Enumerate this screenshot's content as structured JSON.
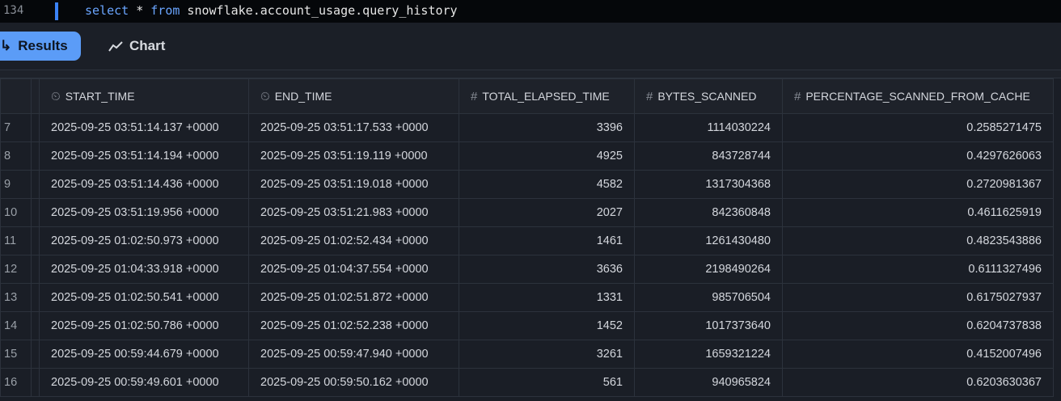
{
  "editor": {
    "line_number": "134",
    "code": {
      "kw1": "select",
      "star": " * ",
      "kw2": "from",
      "rest": " snowflake.account_usage.query_history"
    }
  },
  "toolbar": {
    "results_label": "Results",
    "chart_label": "Chart",
    "results_icon": "arrow-return-icon",
    "chart_icon": "line-chart-icon",
    "accent": "#5b9cf7"
  },
  "table": {
    "columns": [
      {
        "label": "START_TIME",
        "type_icon": "timestamp-ltz-icon"
      },
      {
        "label": "END_TIME",
        "type_icon": "timestamp-ltz-icon"
      },
      {
        "label": "TOTAL_ELAPSED_TIME",
        "type_icon": "hash-icon"
      },
      {
        "label": "BYTES_SCANNED",
        "type_icon": "hash-icon"
      },
      {
        "label": "PERCENTAGE_SCANNED_FROM_CACHE",
        "type_icon": "hash-icon"
      }
    ],
    "rows": [
      [
        "7",
        "2025-09-25 03:51:14.137 +0000",
        "2025-09-25 03:51:17.533 +0000",
        "3396",
        "1114030224",
        "0.2585271475"
      ],
      [
        "8",
        "2025-09-25 03:51:14.194 +0000",
        "2025-09-25 03:51:19.119 +0000",
        "4925",
        "843728744",
        "0.4297626063"
      ],
      [
        "9",
        "2025-09-25 03:51:14.436 +0000",
        "2025-09-25 03:51:19.018 +0000",
        "4582",
        "1317304368",
        "0.2720981367"
      ],
      [
        "10",
        "2025-09-25 03:51:19.956 +0000",
        "2025-09-25 03:51:21.983 +0000",
        "2027",
        "842360848",
        "0.4611625919"
      ],
      [
        "11",
        "2025-09-25 01:02:50.973 +0000",
        "2025-09-25 01:02:52.434 +0000",
        "1461",
        "1261430480",
        "0.4823543886"
      ],
      [
        "12",
        "2025-09-25 01:04:33.918 +0000",
        "2025-09-25 01:04:37.554 +0000",
        "3636",
        "2198490264",
        "0.6111327496"
      ],
      [
        "13",
        "2025-09-25 01:02:50.541 +0000",
        "2025-09-25 01:02:51.872 +0000",
        "1331",
        "985706504",
        "0.6175027937"
      ],
      [
        "14",
        "2025-09-25 01:02:50.786 +0000",
        "2025-09-25 01:02:52.238 +0000",
        "1452",
        "1017373640",
        "0.6204737838"
      ],
      [
        "15",
        "2025-09-25 00:59:44.679 +0000",
        "2025-09-25 00:59:47.940 +0000",
        "3261",
        "1659321224",
        "0.4152007496"
      ],
      [
        "16",
        "2025-09-25 00:59:49.601 +0000",
        "2025-09-25 00:59:50.162 +0000",
        "561",
        "940965824",
        "0.6203630367"
      ]
    ]
  }
}
